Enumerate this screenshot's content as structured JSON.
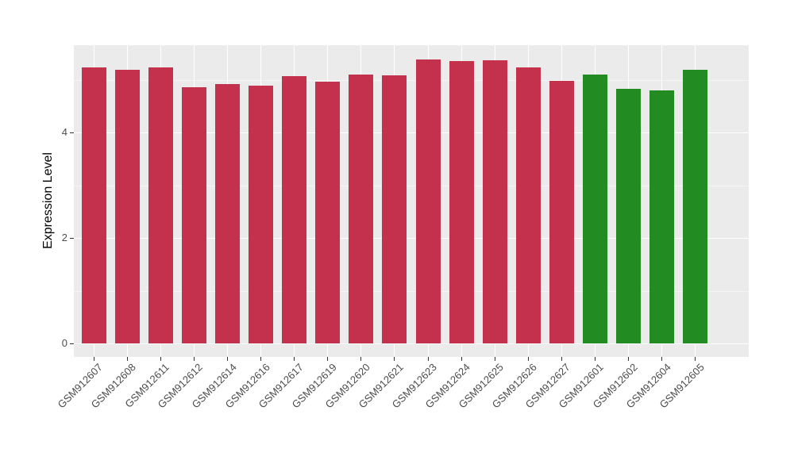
{
  "chart_data": {
    "type": "bar",
    "title": "",
    "xlabel": "",
    "ylabel": "Expression Level",
    "categories": [
      "GSM912607",
      "GSM912608",
      "GSM912611",
      "GSM912612",
      "GSM912614",
      "GSM912616",
      "GSM912617",
      "GSM912619",
      "GSM912620",
      "GSM912621",
      "GSM912623",
      "GSM912624",
      "GSM912625",
      "GSM912626",
      "GSM912627",
      "GSM912601",
      "GSM912602",
      "GSM912604",
      "GSM912605"
    ],
    "values": [
      5.24,
      5.19,
      5.23,
      4.86,
      4.92,
      4.89,
      5.07,
      4.96,
      5.1,
      5.09,
      5.39,
      5.36,
      5.37,
      5.24,
      4.98,
      5.1,
      4.83,
      4.8,
      5.19
    ],
    "bar_colors": [
      "#C3314D",
      "#C3314D",
      "#C3314D",
      "#C3314D",
      "#C3314D",
      "#C3314D",
      "#C3314D",
      "#C3314D",
      "#C3314D",
      "#C3314D",
      "#C3314D",
      "#C3314D",
      "#C3314D",
      "#C3314D",
      "#C3314D",
      "#228B22",
      "#228B22",
      "#228B22",
      "#228B22"
    ],
    "y_ticks": [
      "0",
      "2",
      "4"
    ],
    "y_tick_values": [
      0,
      2,
      4
    ],
    "y_minor_tick_values": [
      1,
      3,
      5
    ],
    "ylim": [
      -0.27,
      5.65
    ],
    "legend": "none",
    "grid": "major white, minor light, on gray panel",
    "styles": {
      "panel_background": "#EBEBEB",
      "major_grid_color": "#FFFFFF",
      "minor_grid_color": "#F5F5F5",
      "red_bar_color": "#C3314D",
      "green_bar_color": "#228B22",
      "tick_mark_color": "#333333",
      "tick_label_color": "#4D4D4D",
      "axis_title_color": "#000000"
    }
  }
}
